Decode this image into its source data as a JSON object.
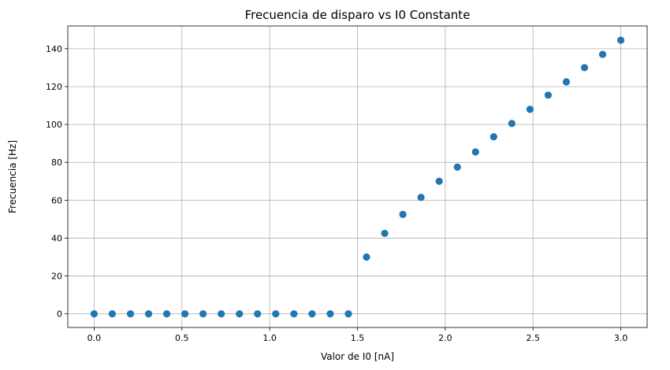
{
  "chart_data": {
    "type": "scatter",
    "title": "Frecuencia de disparo vs I0 Constante",
    "xlabel": "Valor de I0 [nA]",
    "ylabel": "Frecuencia [Hz]",
    "xlim": [
      -0.15,
      3.15
    ],
    "ylim": [
      -7.2,
      152
    ],
    "xticks": [
      0.0,
      0.5,
      1.0,
      1.5,
      2.0,
      2.5,
      3.0
    ],
    "xtick_labels": [
      "0.0",
      "0.5",
      "1.0",
      "1.5",
      "2.0",
      "2.5",
      "3.0"
    ],
    "yticks": [
      0,
      20,
      40,
      60,
      80,
      100,
      120,
      140
    ],
    "ytick_labels": [
      "0",
      "20",
      "40",
      "60",
      "80",
      "100",
      "120",
      "140"
    ],
    "grid": true,
    "color": "#1f77b4",
    "x": [
      0.0,
      0.1034,
      0.2069,
      0.3103,
      0.4138,
      0.5172,
      0.6207,
      0.7241,
      0.8276,
      0.931,
      1.0345,
      1.1379,
      1.2414,
      1.3448,
      1.4483,
      1.5517,
      1.6552,
      1.7586,
      1.8621,
      1.9655,
      2.069,
      2.1724,
      2.2759,
      2.3793,
      2.4828,
      2.5862,
      2.6897,
      2.7931,
      2.8966,
      3.0
    ],
    "y": [
      0,
      0,
      0,
      0,
      0,
      0,
      0,
      0,
      0,
      0,
      0,
      0,
      0,
      0,
      0,
      30,
      42.5,
      52.5,
      61.5,
      70,
      77.5,
      85.5,
      93.5,
      100.5,
      108,
      115.5,
      122.5,
      130,
      137,
      144.5
    ]
  }
}
